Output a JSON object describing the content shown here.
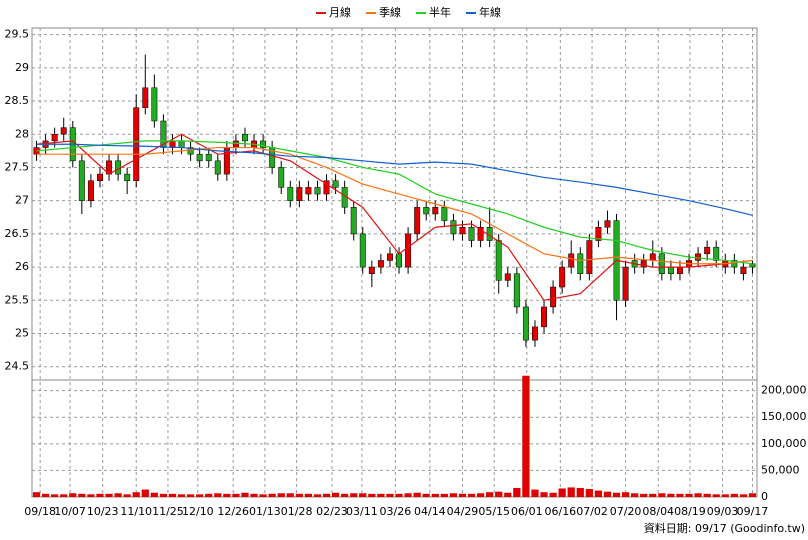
{
  "chart_data": {
    "type": "candlestick",
    "footer": "資料日期: 09/17 (Goodinfo.tw)",
    "up_color": "#e00000",
    "down_color": "#22aa22",
    "grid": true,
    "legend": "top",
    "xlim": [
      -0.5,
      79.5
    ],
    "xticks": [
      {
        "value": 0.4,
        "label": "09/18"
      },
      {
        "value": 3.7,
        "label": "10/07"
      },
      {
        "value": 7.3,
        "label": "10/23"
      },
      {
        "value": 11.0,
        "label": "11/10"
      },
      {
        "value": 14.5,
        "label": "11/25"
      },
      {
        "value": 17.8,
        "label": "12/10"
      },
      {
        "value": 21.7,
        "label": "12/26"
      },
      {
        "value": 25.2,
        "label": "01/13"
      },
      {
        "value": 28.7,
        "label": "01/28"
      },
      {
        "value": 32.6,
        "label": "02/23"
      },
      {
        "value": 35.9,
        "label": "03/11"
      },
      {
        "value": 39.6,
        "label": "03/26"
      },
      {
        "value": 43.4,
        "label": "04/14"
      },
      {
        "value": 47.0,
        "label": "04/29"
      },
      {
        "value": 50.5,
        "label": "05/15"
      },
      {
        "value": 54.1,
        "label": "06/01"
      },
      {
        "value": 57.8,
        "label": "06/16"
      },
      {
        "value": 61.3,
        "label": "07/02"
      },
      {
        "value": 65.0,
        "label": "07/20"
      },
      {
        "value": 68.6,
        "label": "08/04"
      },
      {
        "value": 72.1,
        "label": "08/19"
      },
      {
        "value": 75.7,
        "label": "09/03"
      },
      {
        "value": 79.0,
        "label": "09/17"
      }
    ],
    "ylim": [
      24.3,
      29.6
    ],
    "yticks": [
      24.5,
      25,
      25.5,
      26,
      26.5,
      27,
      27.5,
      28,
      28.5,
      29,
      29.5
    ],
    "open": [
      27.7,
      27.8,
      27.9,
      28.0,
      28.1,
      27.6,
      27.0,
      27.3,
      27.4,
      27.6,
      27.4,
      27.3,
      28.4,
      28.7,
      28.2,
      27.8,
      27.9,
      27.8,
      27.7,
      27.7,
      27.6,
      27.4,
      27.8,
      28.0,
      27.8,
      27.9,
      27.8,
      27.5,
      27.2,
      27.0,
      27.1,
      27.2,
      27.1,
      27.3,
      27.2,
      26.9,
      26.5,
      25.9,
      26.0,
      26.1,
      26.2,
      26.0,
      26.5,
      26.9,
      26.8,
      26.9,
      26.7,
      26.5,
      26.6,
      26.4,
      26.6,
      26.4,
      25.8,
      25.9,
      25.4,
      24.9,
      25.1,
      25.4,
      25.7,
      26.0,
      26.2,
      25.9,
      26.4,
      26.6,
      26.7,
      25.5,
      26.1,
      26.0,
      26.1,
      26.2,
      26.0,
      25.9,
      26.0,
      26.1,
      26.2,
      26.3,
      26.0,
      26.1,
      25.9,
      26.05
    ],
    "high": [
      27.9,
      28.0,
      28.1,
      28.25,
      28.2,
      27.7,
      27.4,
      27.5,
      27.7,
      27.7,
      27.5,
      28.6,
      29.2,
      28.9,
      28.3,
      28.0,
      28.0,
      27.9,
      27.8,
      27.8,
      27.7,
      27.9,
      28.0,
      28.1,
      28.0,
      28.0,
      27.9,
      27.6,
      27.3,
      27.3,
      27.3,
      27.3,
      27.4,
      27.4,
      27.3,
      27.0,
      26.6,
      26.1,
      26.2,
      26.3,
      26.3,
      26.6,
      27.0,
      27.0,
      27.0,
      27.0,
      26.8,
      26.7,
      26.7,
      26.7,
      26.9,
      26.5,
      26.0,
      26.0,
      25.5,
      25.2,
      25.5,
      25.8,
      26.1,
      26.4,
      26.3,
      26.5,
      26.7,
      26.85,
      26.8,
      26.1,
      26.2,
      26.2,
      26.4,
      26.3,
      26.1,
      26.1,
      26.2,
      26.3,
      26.4,
      26.4,
      26.2,
      26.2,
      26.1,
      26.1
    ],
    "low": [
      27.6,
      27.7,
      27.8,
      27.9,
      27.5,
      26.8,
      26.9,
      27.2,
      27.3,
      27.3,
      27.1,
      27.2,
      28.3,
      28.1,
      27.7,
      27.7,
      27.7,
      27.6,
      27.5,
      27.5,
      27.3,
      27.3,
      27.7,
      27.8,
      27.7,
      27.7,
      27.4,
      27.1,
      26.9,
      26.9,
      27.0,
      27.0,
      27.0,
      27.1,
      26.8,
      26.4,
      25.9,
      25.7,
      25.9,
      26.0,
      25.9,
      25.9,
      26.4,
      26.7,
      26.7,
      26.6,
      26.4,
      26.4,
      26.3,
      26.3,
      26.3,
      25.6,
      25.7,
      25.3,
      24.8,
      24.8,
      25.0,
      25.3,
      25.6,
      25.9,
      25.8,
      25.8,
      26.3,
      26.5,
      25.2,
      25.4,
      25.9,
      25.9,
      26.0,
      25.8,
      25.8,
      25.8,
      25.9,
      26.0,
      26.1,
      26.0,
      25.9,
      25.9,
      25.8,
      25.9
    ],
    "close": [
      27.8,
      27.9,
      28.0,
      28.1,
      27.6,
      27.0,
      27.3,
      27.4,
      27.6,
      27.4,
      27.3,
      28.4,
      28.7,
      28.2,
      27.8,
      27.9,
      27.8,
      27.7,
      27.6,
      27.6,
      27.4,
      27.8,
      27.9,
      27.9,
      27.9,
      27.8,
      27.5,
      27.2,
      27.0,
      27.2,
      27.2,
      27.1,
      27.3,
      27.2,
      26.9,
      26.5,
      26.0,
      26.0,
      26.1,
      26.2,
      26.0,
      26.5,
      26.9,
      26.8,
      26.9,
      26.7,
      26.5,
      26.6,
      26.4,
      26.6,
      26.4,
      25.8,
      25.9,
      25.4,
      24.9,
      25.1,
      25.4,
      25.7,
      26.0,
      26.2,
      25.9,
      26.4,
      26.6,
      26.7,
      25.5,
      26.0,
      26.0,
      26.1,
      26.2,
      25.9,
      25.9,
      26.0,
      26.1,
      26.2,
      26.3,
      26.1,
      26.1,
      26.0,
      26.0,
      26.0
    ],
    "series": [
      {
        "name": "月線",
        "color": "#e01010",
        "x": [
          0,
          4,
          8,
          12,
          16,
          20,
          24,
          28,
          32,
          36,
          40,
          44,
          48,
          52,
          56,
          60,
          64,
          68,
          72,
          76,
          79
        ],
        "values": [
          27.85,
          27.9,
          27.4,
          27.7,
          28.0,
          27.7,
          27.75,
          27.6,
          27.25,
          26.9,
          26.2,
          26.6,
          26.65,
          26.3,
          25.5,
          25.6,
          26.1,
          26.0,
          26.0,
          26.05,
          26.1
        ]
      },
      {
        "name": "季線",
        "color": "#ff7010",
        "x": [
          0,
          4,
          8,
          12,
          16,
          20,
          24,
          28,
          32,
          36,
          40,
          44,
          48,
          52,
          56,
          60,
          64,
          68,
          72,
          76,
          79
        ],
        "values": [
          27.7,
          27.7,
          27.7,
          27.7,
          27.75,
          27.8,
          27.8,
          27.7,
          27.5,
          27.25,
          27.1,
          26.95,
          26.8,
          26.5,
          26.2,
          26.1,
          26.15,
          26.1,
          26.05,
          26.05,
          26.1
        ]
      },
      {
        "name": "半年",
        "color": "#20d020",
        "x": [
          0,
          4,
          8,
          12,
          16,
          20,
          24,
          28,
          32,
          36,
          40,
          44,
          48,
          52,
          56,
          60,
          64,
          68,
          72,
          76,
          79
        ],
        "values": [
          27.75,
          27.8,
          27.85,
          27.9,
          27.9,
          27.88,
          27.85,
          27.75,
          27.65,
          27.5,
          27.4,
          27.1,
          26.95,
          26.8,
          26.6,
          26.45,
          26.4,
          26.25,
          26.15,
          26.1,
          26.05
        ]
      },
      {
        "name": "年線",
        "color": "#1060d0",
        "x": [
          0,
          4,
          8,
          12,
          16,
          20,
          24,
          28,
          32,
          36,
          40,
          44,
          48,
          52,
          56,
          60,
          64,
          68,
          72,
          76,
          79
        ],
        "values": [
          27.85,
          27.85,
          27.83,
          27.82,
          27.8,
          27.75,
          27.72,
          27.67,
          27.65,
          27.6,
          27.55,
          27.58,
          27.55,
          27.45,
          27.35,
          27.28,
          27.2,
          27.1,
          27.0,
          26.88,
          26.78
        ]
      }
    ],
    "volume": {
      "color": "#e00000",
      "ylim": [
        0,
        220000
      ],
      "yticks": [
        0,
        {
          "value": 50000,
          "label": "50,000"
        },
        {
          "value": 100000,
          "label": "100,000"
        },
        {
          "value": 150000,
          "label": "150,000"
        },
        {
          "value": 200000,
          "label": "200,000"
        }
      ],
      "values": [
        9000,
        6000,
        5000,
        5000,
        7000,
        6000,
        5000,
        6000,
        6000,
        7000,
        5000,
        9000,
        14000,
        8000,
        6000,
        6000,
        5000,
        5000,
        5000,
        6000,
        7000,
        6000,
        6000,
        8000,
        6000,
        5000,
        6000,
        7000,
        7000,
        6000,
        6000,
        5000,
        6000,
        8000,
        6000,
        7000,
        7000,
        6000,
        6000,
        6000,
        6000,
        7000,
        8000,
        6000,
        6000,
        6000,
        7000,
        6000,
        6000,
        7000,
        9000,
        10000,
        8000,
        17000,
        228000,
        14000,
        9000,
        8000,
        16000,
        18000,
        17000,
        15000,
        12000,
        10000,
        8000,
        9000,
        7000,
        6000,
        6000,
        7000,
        6000,
        6000,
        6000,
        7000,
        6000,
        5000,
        5000,
        6000,
        5000,
        7000
      ]
    }
  }
}
